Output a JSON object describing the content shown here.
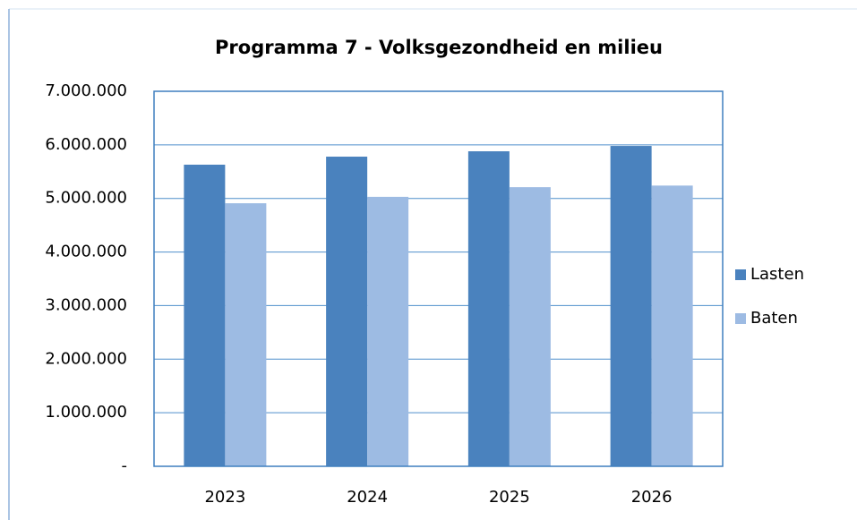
{
  "chart_data": {
    "type": "bar",
    "title": "Programma 7 - Volksgezondheid en milieu",
    "categories": [
      "2023",
      "2024",
      "2025",
      "2026"
    ],
    "series": [
      {
        "name": "Lasten",
        "color": "#4a82be",
        "values": [
          5630000,
          5780000,
          5880000,
          5980000
        ]
      },
      {
        "name": "Baten",
        "color": "#9dbbe3",
        "values": [
          4910000,
          5030000,
          5210000,
          5240000
        ]
      }
    ],
    "ylim": [
      0,
      7000000
    ],
    "yticks": [
      {
        "value": 0,
        "label": "-"
      },
      {
        "value": 1000000,
        "label": "1.000.000"
      },
      {
        "value": 2000000,
        "label": "2.000.000"
      },
      {
        "value": 3000000,
        "label": "3.000.000"
      },
      {
        "value": 4000000,
        "label": "4.000.000"
      },
      {
        "value": 5000000,
        "label": "5.000.000"
      },
      {
        "value": 6000000,
        "label": "6.000.000"
      },
      {
        "value": 7000000,
        "label": "7.000.000"
      }
    ],
    "grid": true,
    "legend": "right"
  }
}
